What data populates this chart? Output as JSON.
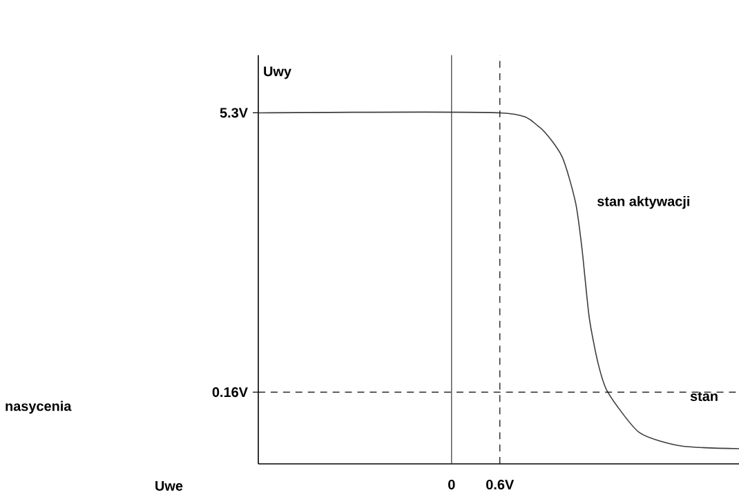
{
  "chart_data": {
    "type": "line",
    "ylabel": "Uwy",
    "xlabel": "Uwe",
    "x": [
      -2.4,
      0.6,
      1.08,
      1.37,
      1.54,
      1.62,
      1.71,
      1.82,
      1.94,
      2.33,
      2.85,
      3.57
    ],
    "values": [
      5.3,
      5.3,
      5.05,
      4.5,
      3.65,
      2.8,
      1.53,
      0.69,
      0.16,
      -0.58,
      -0.83,
      -0.88
    ],
    "color": "#3c3c3c",
    "xlim": [
      -2.4,
      3.57
    ],
    "ylim": [
      -1.16,
      6.36
    ],
    "xticks": [
      {
        "value": 0,
        "label": "0"
      },
      {
        "value": 0.6,
        "label": "0.6V"
      }
    ],
    "yticks": [
      {
        "value": 5.3,
        "label": "5.3V"
      },
      {
        "value": 0.16,
        "label": "0.16V"
      }
    ],
    "ref_lines": [
      {
        "axis": "x",
        "value": 0,
        "color": "#333333"
      },
      {
        "axis": "x",
        "value": 0.6,
        "line_style": "dashed"
      },
      {
        "axis": "y",
        "value": 0.16,
        "line_style": "dashed"
      }
    ],
    "annotations": [
      {
        "text": "stan aktywacji",
        "x": 1.54,
        "y": 3.65
      },
      {
        "text": "stan",
        "x": 3.14,
        "y": 0.08
      },
      "nasycenia"
    ],
    "grid": false,
    "marker": "none",
    "line_style": "solid"
  }
}
